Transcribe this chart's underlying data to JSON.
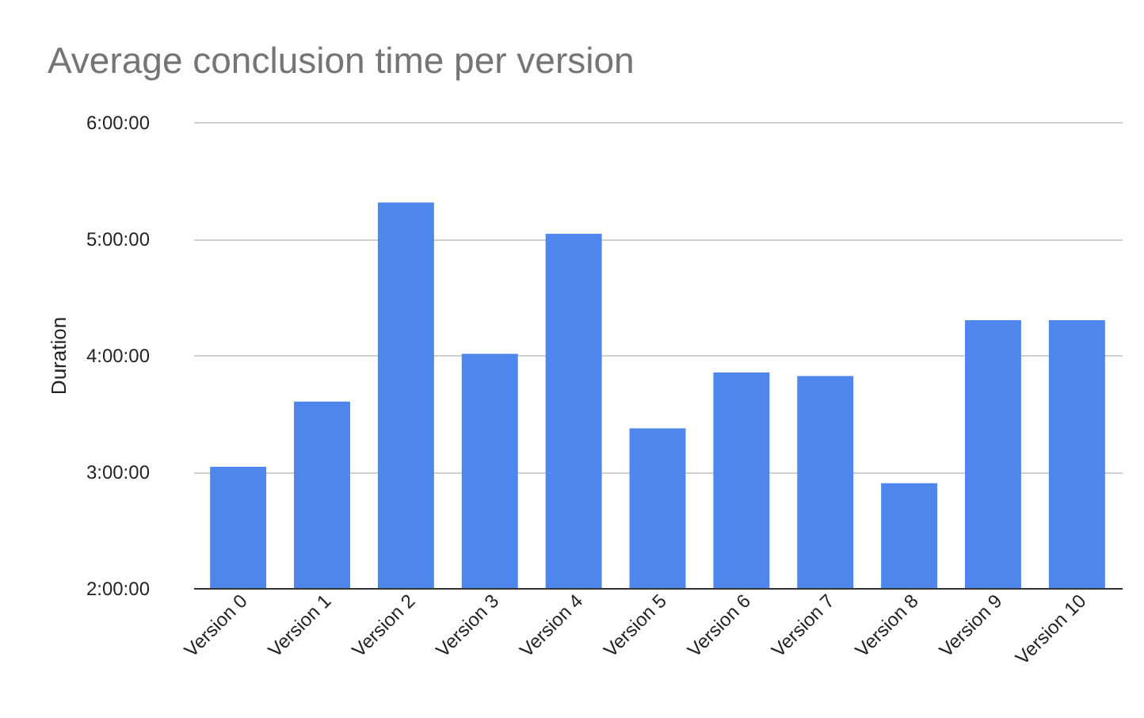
{
  "chart_data": {
    "type": "bar",
    "title": "Average conclusion time per version",
    "ylabel": "Duration",
    "categories": [
      "Version 0",
      "Version 1",
      "Version 2",
      "Version 3",
      "Version 4",
      "Version 5",
      "Version 6",
      "Version 7",
      "Version 8",
      "Version 9",
      "Version 10"
    ],
    "values": [
      3.04,
      3.6,
      5.31,
      4.01,
      5.04,
      3.37,
      3.85,
      3.82,
      2.9,
      4.3,
      4.3
    ],
    "color": "#4f86ec",
    "ylim": [
      2,
      6
    ],
    "yticks": [
      {
        "value": 2,
        "label": "2:00:00"
      },
      {
        "value": 3,
        "label": "3:00:00"
      },
      {
        "value": 4,
        "label": "4:00:00"
      },
      {
        "value": 5,
        "label": "5:00:00"
      },
      {
        "value": 6,
        "label": "6:00:00"
      }
    ],
    "grid": "y"
  }
}
